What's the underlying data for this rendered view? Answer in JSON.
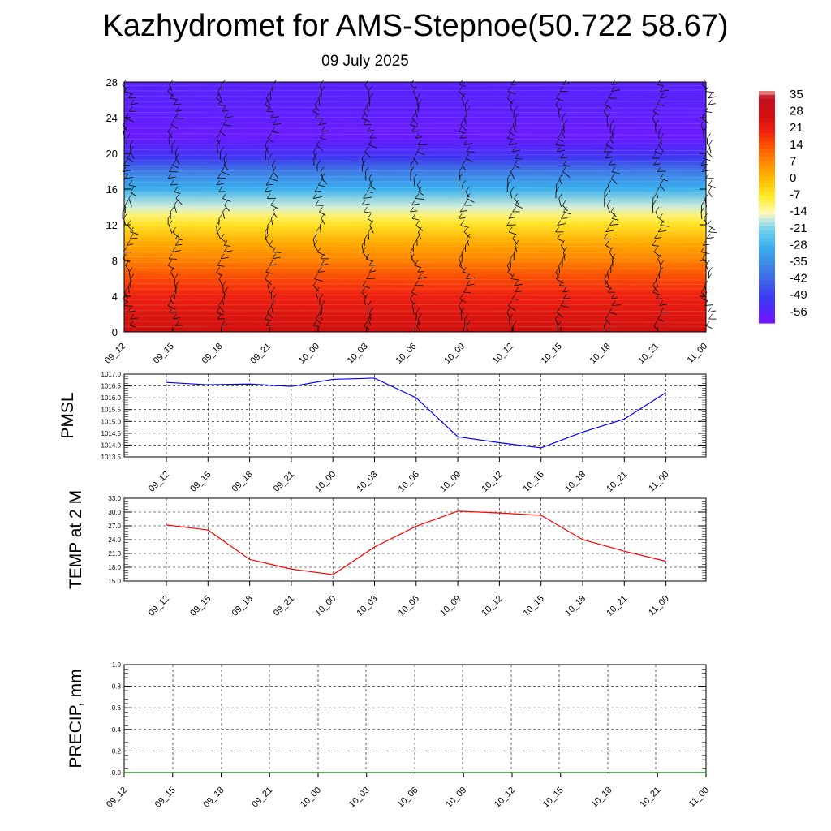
{
  "title": "Kazhydromet for AMS-Stepnoe(50.722 58.67)",
  "date": "09 July 2025",
  "time_labels": [
    "09_12",
    "09_15",
    "09_18",
    "09_21",
    "10_00",
    "10_03",
    "10_06",
    "10_09",
    "10_12",
    "10_15",
    "10_18",
    "10_21",
    "11_00"
  ],
  "chart_data": [
    {
      "type": "heatmap",
      "title": "",
      "xlabel": "",
      "ylabel": "",
      "x": [
        "09_12",
        "09_15",
        "09_18",
        "09_21",
        "10_00",
        "10_03",
        "10_06",
        "10_09",
        "10_12",
        "10_15",
        "10_18",
        "10_21",
        "11_00"
      ],
      "ylim": [
        0,
        28
      ],
      "yticks": [
        0,
        4,
        8,
        12,
        16,
        20,
        24,
        28
      ],
      "colorbar_labels": [
        35,
        28,
        21,
        14,
        7,
        0,
        -7,
        -14,
        -21,
        -28,
        -35,
        -42,
        -49,
        -56
      ],
      "temperature_profile": {
        "heights": [
          0,
          2,
          4,
          6,
          8,
          10,
          12,
          13,
          14,
          16,
          18,
          19.5,
          21,
          22,
          24,
          26,
          28
        ],
        "values": [
          28,
          25,
          21,
          16,
          9,
          3,
          -5,
          -10,
          -16,
          -28,
          -38,
          -50,
          -56,
          -58,
          -57,
          -56,
          -56
        ]
      },
      "wind_barbs": true
    },
    {
      "type": "line",
      "ylabel": "PMSL",
      "ylim": [
        1013.5,
        1017.0
      ],
      "yticks": [
        "1013.5",
        "1014.0",
        "1014.5",
        "1015.0",
        "1015.5",
        "1016.0",
        "1016.5",
        "1017.0"
      ],
      "x": [
        "09_12",
        "09_15",
        "09_18",
        "09_21",
        "10_00",
        "10_03",
        "10_06",
        "10_09",
        "10_12",
        "10_15",
        "10_18",
        "10_21",
        "11_00"
      ],
      "series": [
        {
          "color": "#0000ff",
          "values": [
            1016.65,
            1016.55,
            1016.58,
            1016.48,
            1016.78,
            1016.83,
            1016.0,
            1014.35,
            1014.1,
            1013.88,
            1014.55,
            1015.1,
            1016.22
          ]
        }
      ],
      "grid": true
    },
    {
      "type": "line",
      "ylabel": "TEMP at 2 M",
      "ylim": [
        15.0,
        33.0
      ],
      "yticks": [
        "15.0",
        "18.0",
        "21.0",
        "24.0",
        "27.0",
        "30.0",
        "33.0"
      ],
      "x": [
        "09_12",
        "09_15",
        "09_18",
        "09_21",
        "10_00",
        "10_03",
        "10_06",
        "10_09",
        "10_12",
        "10_15",
        "10_18",
        "10_21",
        "11_00"
      ],
      "series": [
        {
          "color": "#ff0000",
          "values": [
            27.2,
            26.1,
            19.7,
            17.6,
            16.4,
            22.4,
            26.9,
            30.2,
            29.8,
            29.3,
            24.0,
            21.5,
            19.3
          ]
        }
      ],
      "grid": true
    },
    {
      "type": "line",
      "ylabel": "PRECIP, mm",
      "ylim": [
        0.0,
        1.0
      ],
      "yticks": [
        "0.0",
        "0.2",
        "0.4",
        "0.6",
        "0.8",
        "1.0"
      ],
      "x": [
        "09_12",
        "09_15",
        "09_18",
        "09_21",
        "10_00",
        "10_03",
        "10_06",
        "10_09",
        "10_12",
        "10_15",
        "10_18",
        "10_21",
        "11_00"
      ],
      "series": [
        {
          "color": "#008000",
          "values": [
            0,
            0,
            0,
            0,
            0,
            0,
            0,
            0,
            0,
            0,
            0,
            0,
            0
          ]
        }
      ],
      "grid": true
    }
  ]
}
